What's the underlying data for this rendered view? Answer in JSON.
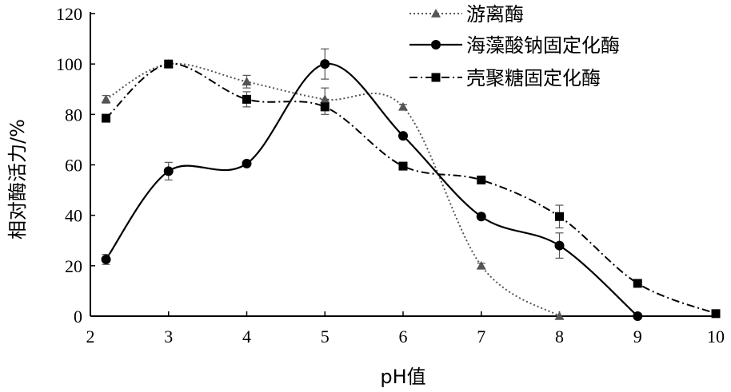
{
  "chart_data": {
    "type": "line",
    "xlabel": "pH值",
    "ylabel": "相对酶活力/%",
    "xlim": [
      2,
      10
    ],
    "ylim": [
      0,
      120
    ],
    "x_ticks": [
      "2",
      "3",
      "4",
      "5",
      "6",
      "7",
      "8",
      "9",
      "10"
    ],
    "y_ticks": [
      "0",
      "20",
      "40",
      "60",
      "80",
      "100",
      "120"
    ],
    "grid": false,
    "legend_position": "top-right",
    "series": [
      {
        "name": "游离酶",
        "marker": "triangle",
        "line_style": "dotted",
        "color": "#555555",
        "x": [
          2.2,
          3,
          4,
          5,
          6,
          7,
          8
        ],
        "y": [
          86,
          100,
          93,
          86,
          83,
          20,
          0
        ],
        "error": [
          1.5,
          1,
          2.5,
          4.5,
          1,
          1,
          0
        ]
      },
      {
        "name": "海藻酸钠固定化酶",
        "marker": "circle",
        "line_style": "solid",
        "color": "#000000",
        "x": [
          2.2,
          3,
          4,
          5,
          6,
          7,
          8,
          9
        ],
        "y": [
          22.5,
          57.5,
          60.5,
          100,
          71.5,
          39.5,
          28,
          0
        ],
        "error": [
          2,
          3.5,
          0.5,
          6,
          1,
          1,
          5,
          0
        ]
      },
      {
        "name": "壳聚糖固定化酶",
        "marker": "square",
        "line_style": "dashdot",
        "color": "#000000",
        "x": [
          2.2,
          3,
          4,
          5,
          6,
          7,
          8,
          9,
          10
        ],
        "y": [
          78.5,
          100,
          86,
          83,
          59.5,
          54,
          39.5,
          13,
          1
        ],
        "error": [
          1,
          1,
          3,
          3,
          1,
          1,
          4.5,
          1,
          1
        ]
      }
    ]
  }
}
